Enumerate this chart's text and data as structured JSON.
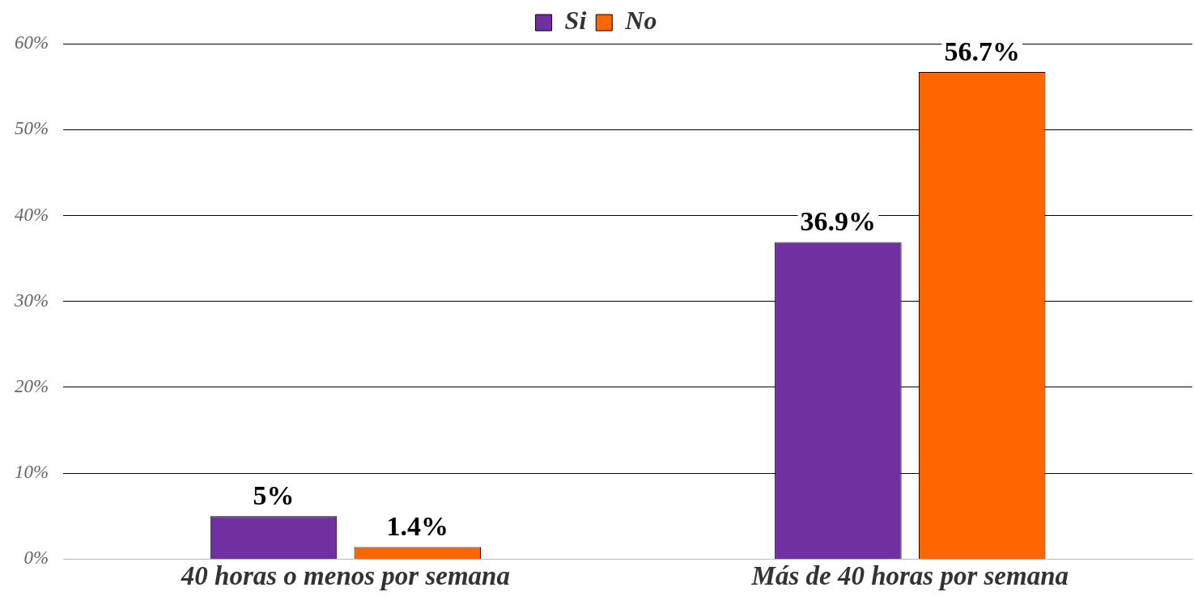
{
  "chart_data": {
    "type": "bar",
    "categories": [
      "40 horas o menos por semana",
      "Más de 40 horas por semana"
    ],
    "series": [
      {
        "name": "Si",
        "color": "#7030a0",
        "values": [
          5,
          36.9
        ],
        "value_labels": [
          "5%",
          "36.9%"
        ]
      },
      {
        "name": "No",
        "color": "#ff6600",
        "values": [
          1.4,
          56.7
        ],
        "value_labels": [
          "1.4%",
          "56.7%"
        ]
      }
    ],
    "ylim": [
      0,
      60
    ],
    "yticks": [
      {
        "value": 0,
        "label": "0%"
      },
      {
        "value": 10,
        "label": "10%"
      },
      {
        "value": 20,
        "label": "20%"
      },
      {
        "value": 30,
        "label": "30%"
      },
      {
        "value": 40,
        "label": "40%"
      },
      {
        "value": 50,
        "label": "50%"
      },
      {
        "value": 60,
        "label": "60%"
      }
    ],
    "grid": "y",
    "legend": "top"
  }
}
